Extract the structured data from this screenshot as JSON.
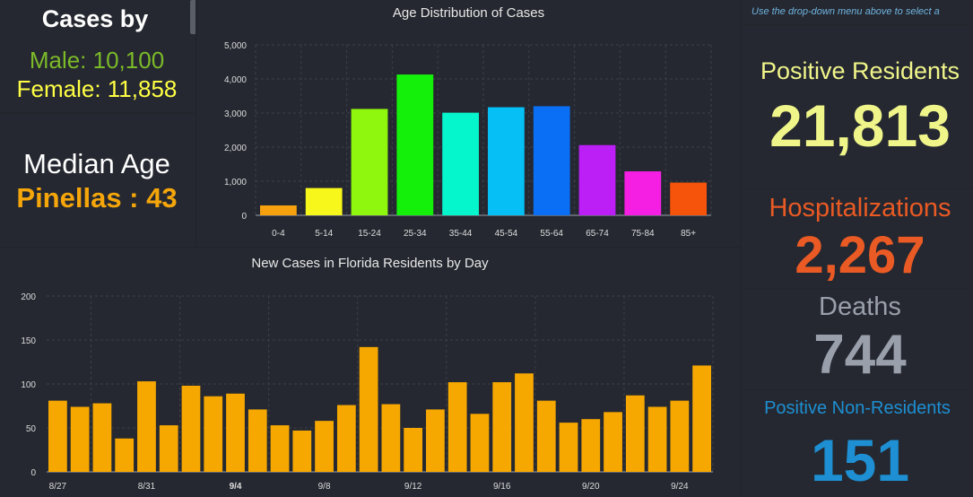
{
  "cases_by": {
    "title": "Cases by",
    "male": "Male: 10,100",
    "female": "Female: 11,858"
  },
  "median": {
    "label": "Median Age",
    "value": "Pinellas : 43"
  },
  "note": "Use the drop-down menu above to select a",
  "stats": {
    "positive_label": "Positive Residents",
    "positive_value": "21,813",
    "hosp_label": "Hospitalizations",
    "hosp_value": "2,267",
    "deaths_label": "Deaths",
    "deaths_value": "744",
    "nonres_label": "Positive Non-Residents",
    "nonres_value": "151"
  },
  "colors": {
    "male": "#7cba29",
    "female": "#ffff44",
    "median": "#f5a60a",
    "positive": "#f0f58a",
    "hosp": "#ea5a24",
    "deaths": "#9aa0ab",
    "nonres": "#1d8fd2",
    "daily_bar": "#f6a800"
  },
  "chart_data": [
    {
      "type": "bar",
      "title": "Age Distribution of Cases",
      "categories": [
        "0-4",
        "5-14",
        "15-24",
        "25-34",
        "35-44",
        "45-54",
        "55-64",
        "65-74",
        "75-84",
        "85+"
      ],
      "values": [
        290,
        800,
        3120,
        4130,
        3010,
        3170,
        3200,
        2060,
        1290,
        960
      ],
      "colors": [
        "#f7a10f",
        "#f7f71b",
        "#8ff70d",
        "#14f00a",
        "#05f5cc",
        "#05bff5",
        "#0a6ff5",
        "#bb1ff5",
        "#f51fe3",
        "#f5540a"
      ],
      "ylim": [
        0,
        5000
      ],
      "yticks": [
        "0",
        "1,000",
        "2,000",
        "3,000",
        "4,000",
        "5,000"
      ],
      "grid": true
    },
    {
      "type": "bar",
      "title": "New Cases in Florida Residents by Day",
      "values": [
        81,
        74,
        78,
        38,
        103,
        53,
        98,
        86,
        89,
        71,
        53,
        47,
        58,
        76,
        142,
        77,
        50,
        71,
        102,
        66,
        102,
        112,
        81,
        56,
        60,
        68,
        87,
        74,
        81,
        121
      ],
      "xtick_labels": [
        "8/27",
        "8/31",
        "9/4",
        "9/8",
        "9/12",
        "9/16",
        "9/20",
        "9/24"
      ],
      "xtick_indices": [
        0,
        4,
        8,
        12,
        16,
        20,
        24,
        28
      ],
      "ylim": [
        0,
        200
      ],
      "yticks": [
        "0",
        "50",
        "100",
        "150",
        "200"
      ],
      "grid": true
    }
  ]
}
